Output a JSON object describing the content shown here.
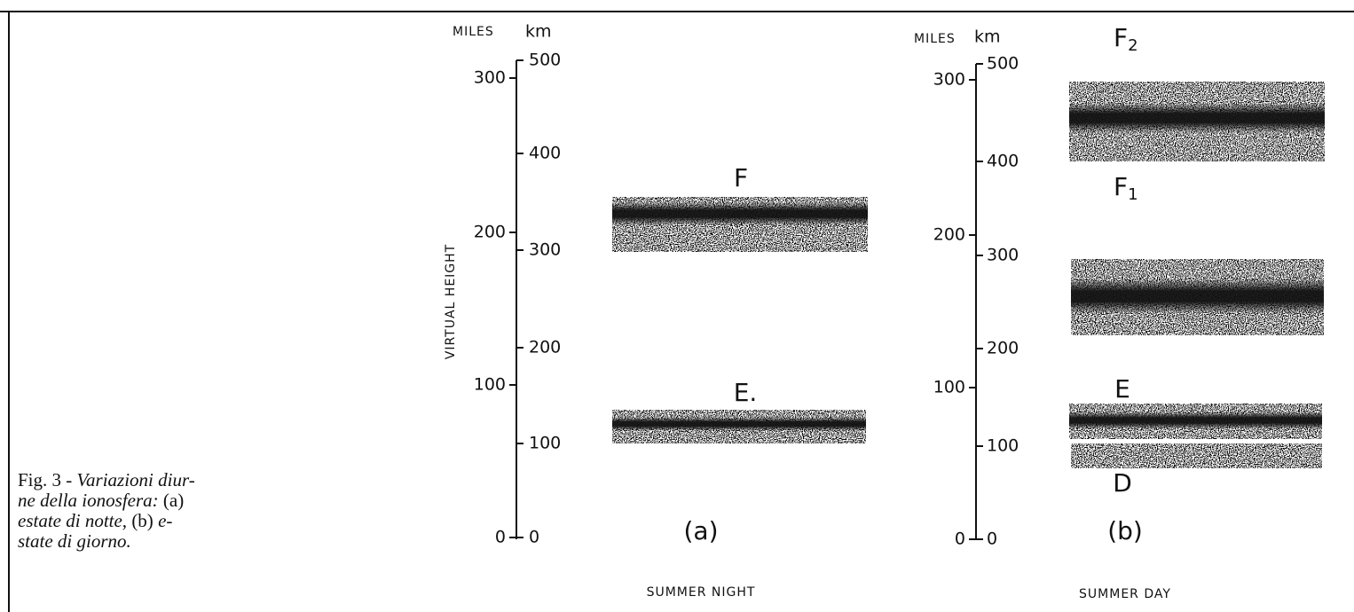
{
  "caption": {
    "lines": [
      [
        "Fig. 3 - ",
        "Variazioni diur-"
      ],
      [
        "ne della ionosfera:",
        " (a)"
      ],
      [
        "estate di notte,",
        " (b) ",
        "e-"
      ],
      [
        "state di giorno."
      ]
    ]
  },
  "panels": [
    {
      "miles_header": "MILES",
      "km_header": "km",
      "axis_title": "VIRTUAL HEIGHT",
      "miles_ticks": [
        "300",
        "200",
        "100",
        "0"
      ],
      "km_ticks": [
        "500",
        "400",
        "300",
        "200",
        "100",
        "0"
      ],
      "layers": [
        {
          "name": "F"
        },
        {
          "name": "E."
        }
      ],
      "panel_label": "(a)",
      "subtitle": "SUMMER NIGHT"
    },
    {
      "miles_header": "MILES",
      "km_header": "km",
      "miles_ticks": [
        "300",
        "200",
        "100",
        "0"
      ],
      "km_ticks": [
        "500",
        "400",
        "300",
        "200",
        "100",
        "0"
      ],
      "layers": [
        {
          "name": "F",
          "sub": "2"
        },
        {
          "name": "F",
          "sub": "1"
        },
        {
          "name": "E"
        },
        {
          "name": "D"
        }
      ],
      "panel_label": "(b)",
      "subtitle": "SUMMER DAY"
    }
  ]
}
